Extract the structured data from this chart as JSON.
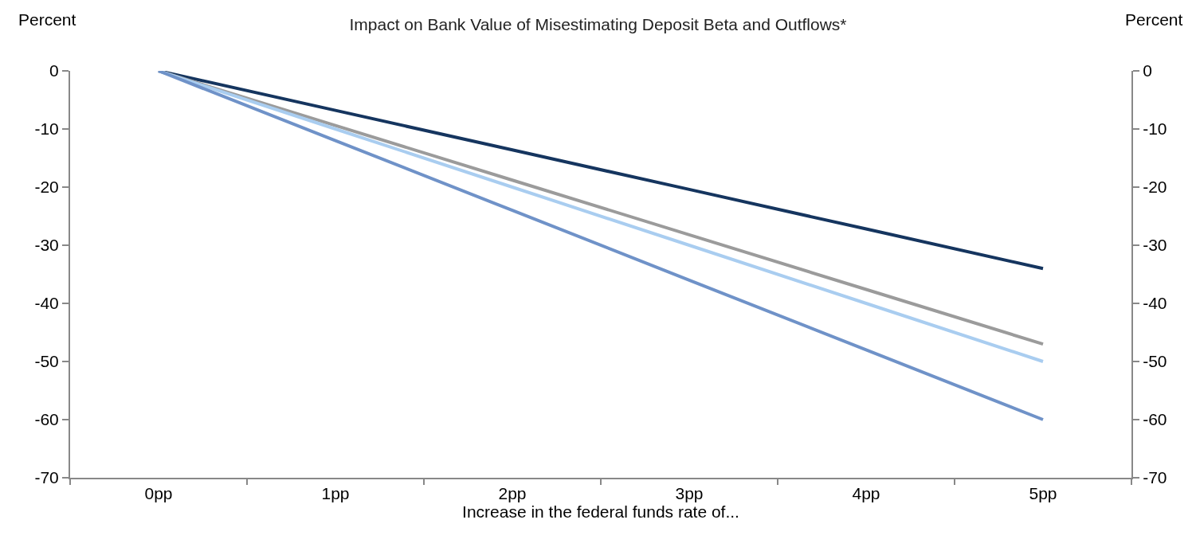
{
  "chart_data": {
    "type": "line",
    "title": "Impact on Bank Value of Misestimating Deposit Beta and Outflows*",
    "xlabel": "Increase in the federal funds rate of...",
    "ylabel": "Percent",
    "y2label": "Percent",
    "categories": [
      "0pp",
      "1pp",
      "2pp",
      "3pp",
      "4pp",
      "5pp"
    ],
    "series": [
      {
        "color": "#15355f",
        "values": [
          0,
          -6.8,
          -13.6,
          -20.4,
          -27.2,
          -34
        ]
      },
      {
        "color": "#9b9b9b",
        "values": [
          0,
          -9.4,
          -18.8,
          -28.2,
          -37.6,
          -47
        ]
      },
      {
        "color": "#a9cdf0",
        "values": [
          0,
          -10,
          -20,
          -30,
          -40,
          -50
        ]
      },
      {
        "color": "#6f92c8",
        "values": [
          0,
          -12,
          -24,
          -36,
          -48,
          -60
        ]
      }
    ],
    "ylim": [
      -70,
      0
    ],
    "yticks": [
      0,
      -10,
      -20,
      -30,
      -40,
      -50,
      -60,
      -70
    ],
    "y2lim": [
      -70,
      0
    ],
    "y2ticks": [
      0,
      -10,
      -20,
      -30,
      -40,
      -50,
      -60,
      -70
    ],
    "grid": false,
    "marker": "none",
    "line_style": "solid"
  }
}
